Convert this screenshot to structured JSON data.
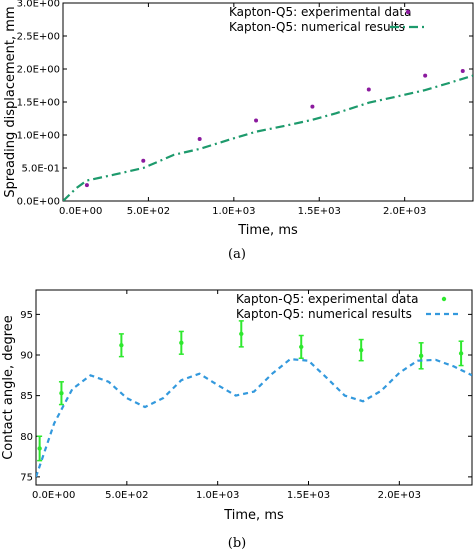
{
  "chart_data": [
    {
      "type": "scatter+line",
      "caption": "(a)",
      "xlabel": "Time, ms",
      "ylabel": "Spreading displacement, mm",
      "xlim": [
        0,
        2400
      ],
      "ylim": [
        0,
        3.0
      ],
      "x_ticks": [
        0,
        500,
        1000,
        1500,
        2000
      ],
      "x_tick_labels": [
        "0.0E+00",
        "5.0E+02",
        "1.0E+03",
        "1.5E+03",
        "2.0E+03"
      ],
      "y_ticks": [
        0,
        0.5,
        1.0,
        1.5,
        2.0,
        2.5,
        3.0
      ],
      "y_tick_labels": [
        "0.0E+00",
        "5.0E-01",
        "1.0E+00",
        "1.5E+00",
        "2.0E+00",
        "2.5E+00",
        "3.0E+00"
      ],
      "legend_position": "top-right",
      "series": [
        {
          "name": "Kapton-Q5: experimental data",
          "kind": "markers",
          "color": "#8b1a9e",
          "x": [
            140,
            470,
            800,
            1130,
            1460,
            1790,
            2120,
            2340
          ],
          "y": [
            0.24,
            0.61,
            0.94,
            1.22,
            1.43,
            1.69,
            1.9,
            1.97
          ]
        },
        {
          "name": "Kapton-Q5: numerical results",
          "kind": "dash-dot-line",
          "color": "#1d9a6c",
          "x": [
            0,
            80,
            140,
            300,
            470,
            650,
            800,
            1000,
            1130,
            1300,
            1460,
            1600,
            1790,
            1950,
            2120,
            2250,
            2400
          ],
          "y": [
            0.0,
            0.2,
            0.31,
            0.4,
            0.5,
            0.7,
            0.79,
            0.95,
            1.05,
            1.14,
            1.23,
            1.33,
            1.49,
            1.58,
            1.68,
            1.78,
            1.9
          ]
        }
      ]
    },
    {
      "type": "scatter+line",
      "caption": "(b)",
      "xlabel": "Time, ms",
      "ylabel": "Contact angle, degree",
      "xlim": [
        0,
        2400
      ],
      "ylim": [
        74,
        98
      ],
      "x_ticks": [
        0,
        500,
        1000,
        1500,
        2000
      ],
      "x_tick_labels": [
        "0.0E+00",
        "5.0E+02",
        "1.0E+03",
        "1.5E+03",
        "2.0E+03"
      ],
      "y_ticks": [
        75,
        80,
        85,
        90,
        95
      ],
      "y_tick_labels": [
        "75",
        "80",
        "85",
        "90",
        "95"
      ],
      "legend_position": "top-right",
      "series": [
        {
          "name": "Kapton-Q5: experimental data",
          "kind": "markers-with-errorbars",
          "color": "#2ee82e",
          "x": [
            20,
            140,
            470,
            800,
            1130,
            1460,
            1790,
            2120,
            2340
          ],
          "y": [
            78.5,
            85.3,
            91.2,
            91.5,
            92.6,
            91.0,
            90.6,
            89.9,
            90.2
          ],
          "err": [
            1.5,
            1.4,
            1.4,
            1.4,
            1.6,
            1.4,
            1.3,
            1.6,
            1.5
          ]
        },
        {
          "name": "Kapton-Q5: numerical results",
          "kind": "dashed-line",
          "color": "#3399dd",
          "x": [
            0,
            100,
            200,
            300,
            400,
            500,
            600,
            700,
            800,
            900,
            1000,
            1100,
            1200,
            1300,
            1400,
            1500,
            1600,
            1700,
            1800,
            1900,
            2000,
            2100,
            2200,
            2300,
            2400
          ],
          "y": [
            75.0,
            81.6,
            85.8,
            87.5,
            86.7,
            84.7,
            83.6,
            84.7,
            86.9,
            87.7,
            86.3,
            85.0,
            85.5,
            87.7,
            89.5,
            89.3,
            87.2,
            85.0,
            84.3,
            85.6,
            87.8,
            89.3,
            89.4,
            88.6,
            87.5
          ]
        }
      ]
    }
  ]
}
